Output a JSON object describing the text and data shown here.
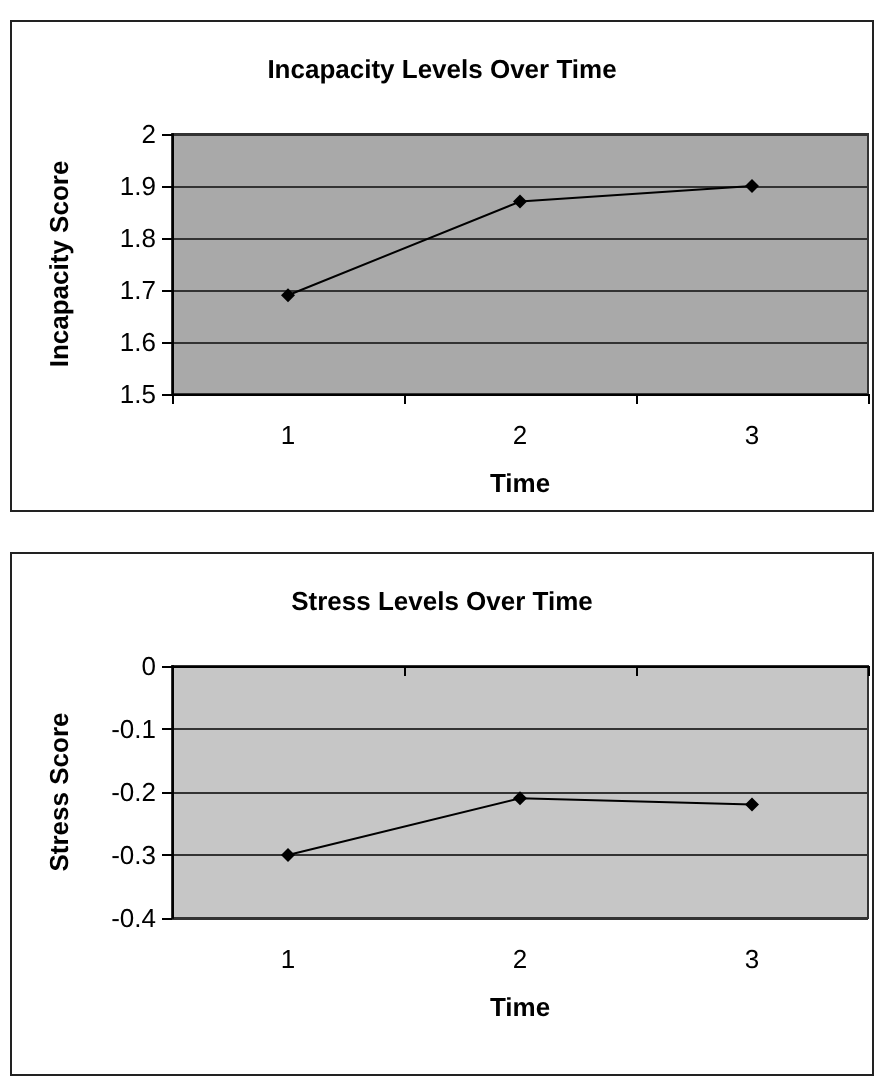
{
  "chart_data": [
    {
      "type": "line",
      "title": "Incapacity Levels Over Time",
      "xlabel": "Time",
      "ylabel": "Incapacity Score",
      "categories": [
        "1",
        "2",
        "3"
      ],
      "values": [
        1.69,
        1.87,
        1.9
      ],
      "color": "#000000",
      "ylim": [
        1.5,
        2
      ],
      "yticks": [
        1.5,
        1.6,
        1.7,
        1.8,
        1.9,
        2
      ],
      "grid": "y",
      "marker": "diamond"
    },
    {
      "type": "line",
      "title": "Stress Levels Over Time",
      "xlabel": "Time",
      "ylabel": "Stress Score",
      "categories": [
        "1",
        "2",
        "3"
      ],
      "values": [
        -0.3,
        -0.21,
        -0.22
      ],
      "color": "#000000",
      "ylim": [
        -0.4,
        0
      ],
      "yticks": [
        -0.4,
        -0.3,
        -0.2,
        -0.1,
        0
      ],
      "grid": "y",
      "marker": "diamond"
    }
  ]
}
